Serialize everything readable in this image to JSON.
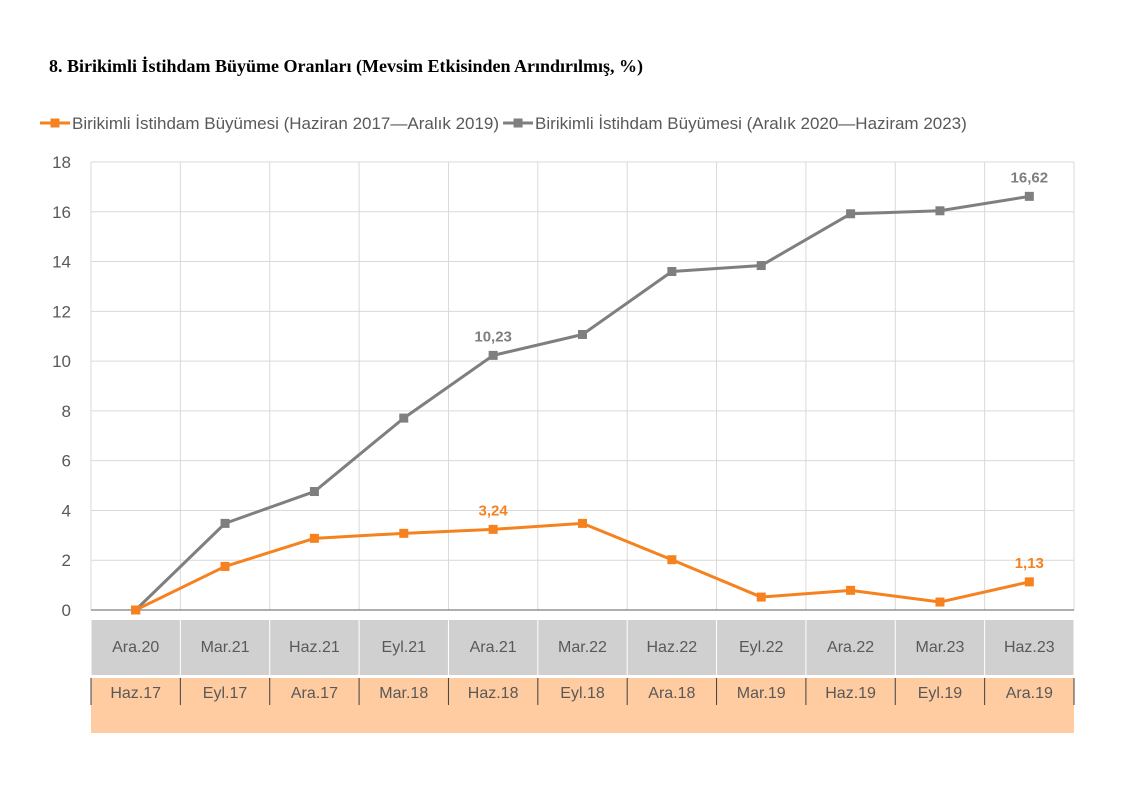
{
  "chart_data": {
    "type": "line",
    "title": "8. Birikimli İstihdam Büyüme Oranları (Mevsim Etkisinden Arındırılmış, %)",
    "ylim": [
      0,
      18
    ],
    "yticks": [
      0,
      2,
      4,
      6,
      8,
      10,
      12,
      14,
      16,
      18
    ],
    "grid": true,
    "legend_position": "top",
    "categories_top": [
      "Ara.20",
      "Mar.21",
      "Haz.21",
      "Eyl.21",
      "Ara.21",
      "Mar.22",
      "Haz.22",
      "Eyl.22",
      "Ara.22",
      "Mar.23",
      "Haz.23"
    ],
    "categories_bottom": [
      "Haz.17",
      "Eyl.17",
      "Ara.17",
      "Mar.18",
      "Haz.18",
      "Eyl.18",
      "Ara.18",
      "Mar.19",
      "Haz.19",
      "Eyl.19",
      "Ara.19"
    ],
    "series": [
      {
        "name": "Birikimli İstihdam Büyümesi (Haziran 2017—Aralık 2019)",
        "color": "#F5821F",
        "category_axis": "bottom",
        "values": [
          0,
          1.75,
          2.88,
          3.08,
          3.24,
          3.48,
          2.02,
          0.52,
          0.79,
          0.32,
          1.13
        ],
        "labels": [
          {
            "index": 4,
            "text": "3,24"
          },
          {
            "index": 10,
            "text": "1,13"
          }
        ]
      },
      {
        "name": "Birikimli İstihdam Büyümesi (Aralık 2020—Haziram 2023)",
        "color": "#7F7F7F",
        "category_axis": "top",
        "values": [
          0,
          3.48,
          4.76,
          7.71,
          10.23,
          11.07,
          13.6,
          13.84,
          15.92,
          16.04,
          16.62
        ],
        "labels": [
          {
            "index": 4,
            "text": "10,23"
          },
          {
            "index": 10,
            "text": "16,62"
          }
        ]
      }
    ],
    "band_colors": {
      "top": "#D0D0D0",
      "bottom": "#FFCBA0"
    }
  }
}
